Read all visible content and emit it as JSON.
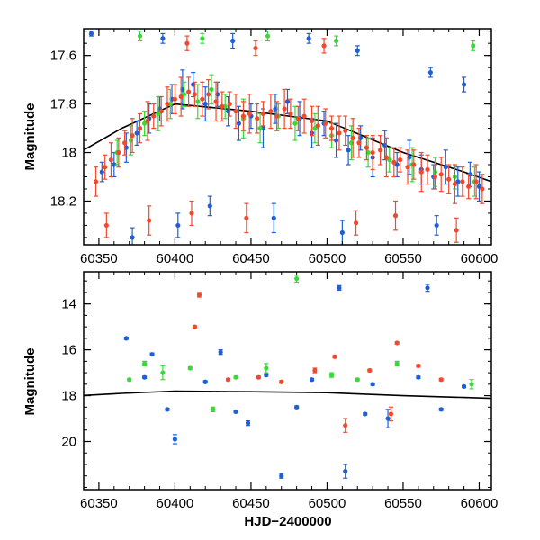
{
  "chart_data": [
    {
      "type": "scatter",
      "panel": "top",
      "title": "",
      "xlabel": "",
      "ylabel": "Magnitude",
      "xlim": [
        60340,
        60608
      ],
      "ylim": [
        18.38,
        17.49
      ],
      "y_inverted": true,
      "xticks": [
        60350,
        60400,
        60450,
        60500,
        60550,
        60600
      ],
      "yticks": [
        17.6,
        17.8,
        18.0,
        18.2
      ],
      "ytick_labels": [
        "17.6",
        "17.8",
        "18",
        "18.2"
      ],
      "grid": false,
      "trend_line": {
        "color": "#000000",
        "points": [
          [
            60340,
            17.99
          ],
          [
            60365,
            17.9
          ],
          [
            60400,
            17.8
          ],
          [
            60450,
            17.83
          ],
          [
            60500,
            17.87
          ],
          [
            60550,
            18.0
          ],
          [
            60590,
            18.08
          ],
          [
            60608,
            18.12
          ]
        ]
      },
      "series": [
        {
          "color": "#1f5fd6",
          "points": [
            [
              60352,
              18.08,
              0.04
            ],
            [
              60360,
              18.05,
              0.05
            ],
            [
              60368,
              17.98,
              0.06
            ],
            [
              60375,
              17.92,
              0.05
            ],
            [
              60383,
              17.86,
              0.06
            ],
            [
              60390,
              17.82,
              0.05
            ],
            [
              60398,
              17.78,
              0.06
            ],
            [
              60405,
              17.74,
              0.08
            ],
            [
              60412,
              17.72,
              0.05
            ],
            [
              60420,
              17.8,
              0.07
            ],
            [
              60428,
              17.76,
              0.05
            ],
            [
              60435,
              17.83,
              0.06
            ],
            [
              60442,
              17.88,
              0.07
            ],
            [
              60450,
              17.85,
              0.05
            ],
            [
              60458,
              17.9,
              0.08
            ],
            [
              60466,
              17.82,
              0.06
            ],
            [
              60474,
              17.79,
              0.05
            ],
            [
              60482,
              17.86,
              0.07
            ],
            [
              60490,
              17.92,
              0.06
            ],
            [
              60498,
              17.88,
              0.05
            ],
            [
              60506,
              17.95,
              0.07
            ],
            [
              60514,
              17.99,
              0.06
            ],
            [
              60522,
              17.94,
              0.05
            ],
            [
              60530,
              18.02,
              0.08
            ],
            [
              60538,
              17.97,
              0.06
            ],
            [
              60546,
              18.05,
              0.05
            ],
            [
              60554,
              18.02,
              0.07
            ],
            [
              60562,
              18.07,
              0.06
            ],
            [
              60570,
              18.1,
              0.05
            ],
            [
              60578,
              18.06,
              0.07
            ],
            [
              60586,
              18.12,
              0.06
            ],
            [
              60594,
              18.09,
              0.05
            ],
            [
              60600,
              18.14,
              0.06
            ],
            [
              60372,
              18.35,
              0.04
            ],
            [
              60402,
              18.3,
              0.05
            ],
            [
              60423,
              18.22,
              0.04
            ],
            [
              60465,
              18.27,
              0.06
            ],
            [
              60510,
              18.33,
              0.05
            ],
            [
              60572,
              18.3,
              0.04
            ],
            [
              60345,
              17.51,
              0.01
            ],
            [
              60392,
              17.53,
              0.02
            ],
            [
              60438,
              17.54,
              0.03
            ],
            [
              60488,
              17.53,
              0.02
            ],
            [
              60520,
              17.58,
              0.02
            ],
            [
              60568,
              17.67,
              0.02
            ],
            [
              60590,
              17.72,
              0.03
            ]
          ]
        },
        {
          "color": "#3ad93a",
          "points": [
            [
              60362,
              18.0,
              0.05
            ],
            [
              60371,
              17.95,
              0.06
            ],
            [
              60380,
              17.88,
              0.05
            ],
            [
              60389,
              17.84,
              0.07
            ],
            [
              60397,
              17.8,
              0.06
            ],
            [
              60406,
              17.76,
              0.05
            ],
            [
              60415,
              17.79,
              0.07
            ],
            [
              60424,
              17.74,
              0.06
            ],
            [
              60433,
              17.81,
              0.05
            ],
            [
              60445,
              17.86,
              0.08
            ],
            [
              60456,
              17.9,
              0.06
            ],
            [
              60468,
              17.85,
              0.05
            ],
            [
              60479,
              17.88,
              0.07
            ],
            [
              60492,
              17.9,
              0.06
            ],
            [
              60503,
              17.93,
              0.05
            ],
            [
              60516,
              17.96,
              0.07
            ],
            [
              60527,
              18.0,
              0.06
            ],
            [
              60541,
              18.03,
              0.05
            ],
            [
              60556,
              18.05,
              0.07
            ],
            [
              60571,
              18.08,
              0.06
            ],
            [
              60584,
              18.1,
              0.05
            ],
            [
              60597,
              18.12,
              0.06
            ],
            [
              60377,
              17.52,
              0.02
            ],
            [
              60418,
              17.53,
              0.02
            ],
            [
              60461,
              17.52,
              0.02
            ],
            [
              60506,
              17.54,
              0.02
            ],
            [
              60596,
              17.56,
              0.02
            ]
          ]
        },
        {
          "color": "#f04a2e",
          "points": [
            [
              60348,
              18.12,
              0.06
            ],
            [
              60354,
              18.06,
              0.05
            ],
            [
              60358,
              18.03,
              0.07
            ],
            [
              60363,
              18.0,
              0.06
            ],
            [
              60367,
              17.96,
              0.05
            ],
            [
              60372,
              17.93,
              0.07
            ],
            [
              60377,
              17.9,
              0.06
            ],
            [
              60382,
              17.87,
              0.08
            ],
            [
              60386,
              17.85,
              0.05
            ],
            [
              60391,
              17.83,
              0.06
            ],
            [
              60395,
              17.8,
              0.07
            ],
            [
              60400,
              17.78,
              0.06
            ],
            [
              60404,
              17.77,
              0.08
            ],
            [
              60409,
              17.75,
              0.06
            ],
            [
              60413,
              17.76,
              0.05
            ],
            [
              60418,
              17.78,
              0.07
            ],
            [
              60422,
              17.76,
              0.06
            ],
            [
              60427,
              17.79,
              0.08
            ],
            [
              60431,
              17.81,
              0.06
            ],
            [
              60436,
              17.8,
              0.05
            ],
            [
              60440,
              17.83,
              0.07
            ],
            [
              60445,
              17.85,
              0.06
            ],
            [
              60449,
              17.84,
              0.08
            ],
            [
              60454,
              17.86,
              0.06
            ],
            [
              60458,
              17.84,
              0.05
            ],
            [
              60463,
              17.83,
              0.07
            ],
            [
              60467,
              17.85,
              0.06
            ],
            [
              60472,
              17.82,
              0.08
            ],
            [
              60476,
              17.84,
              0.06
            ],
            [
              60481,
              17.86,
              0.05
            ],
            [
              60485,
              17.85,
              0.07
            ],
            [
              60490,
              17.87,
              0.06
            ],
            [
              60494,
              17.89,
              0.08
            ],
            [
              60499,
              17.88,
              0.06
            ],
            [
              60503,
              17.9,
              0.05
            ],
            [
              60508,
              17.92,
              0.07
            ],
            [
              60512,
              17.91,
              0.06
            ],
            [
              60517,
              17.94,
              0.08
            ],
            [
              60521,
              17.96,
              0.06
            ],
            [
              60526,
              17.98,
              0.05
            ],
            [
              60530,
              18.0,
              0.07
            ],
            [
              60535,
              17.99,
              0.06
            ],
            [
              60539,
              18.02,
              0.08
            ],
            [
              60544,
              18.04,
              0.06
            ],
            [
              60548,
              18.03,
              0.05
            ],
            [
              60553,
              18.06,
              0.07
            ],
            [
              60557,
              18.05,
              0.06
            ],
            [
              60562,
              18.08,
              0.08
            ],
            [
              60566,
              18.07,
              0.06
            ],
            [
              60571,
              18.1,
              0.05
            ],
            [
              60575,
              18.09,
              0.07
            ],
            [
              60580,
              18.11,
              0.06
            ],
            [
              60584,
              18.13,
              0.08
            ],
            [
              60589,
              18.12,
              0.06
            ],
            [
              60593,
              18.14,
              0.05
            ],
            [
              60598,
              18.12,
              0.07
            ],
            [
              60602,
              18.15,
              0.06
            ],
            [
              60355,
              18.3,
              0.05
            ],
            [
              60383,
              18.28,
              0.06
            ],
            [
              60411,
              18.25,
              0.05
            ],
            [
              60447,
              18.27,
              0.06
            ],
            [
              60519,
              18.29,
              0.05
            ],
            [
              60545,
              18.26,
              0.06
            ],
            [
              60585,
              18.32,
              0.05
            ],
            [
              60408,
              17.55,
              0.03
            ],
            [
              60453,
              17.57,
              0.03
            ],
            [
              60498,
              17.56,
              0.03
            ]
          ]
        }
      ]
    },
    {
      "type": "scatter",
      "panel": "bottom",
      "title": "",
      "xlabel": "HJD−2400000",
      "ylabel": "Magnitude",
      "xlim": [
        60340,
        60608
      ],
      "ylim": [
        22.1,
        12.6
      ],
      "y_inverted": true,
      "xticks": [
        60350,
        60400,
        60450,
        60500,
        60550,
        60600
      ],
      "yticks": [
        14,
        16,
        18,
        20
      ],
      "ytick_labels": [
        "14",
        "16",
        "18",
        "20"
      ],
      "grid": false,
      "trend_line": {
        "color": "#000000",
        "points": [
          [
            60340,
            17.99
          ],
          [
            60365,
            17.9
          ],
          [
            60400,
            17.8
          ],
          [
            60450,
            17.83
          ],
          [
            60500,
            17.87
          ],
          [
            60550,
            18.0
          ],
          [
            60590,
            18.08
          ],
          [
            60608,
            18.12
          ]
        ]
      },
      "series": [
        {
          "color": "#1f5fd6",
          "points": [
            [
              60368,
              15.5,
              0.05
            ],
            [
              60385,
              16.2,
              0.06
            ],
            [
              60400,
              19.9,
              0.2
            ],
            [
              60430,
              16.1,
              0.1
            ],
            [
              60448,
              19.2,
              0.1
            ],
            [
              60470,
              21.5,
              0.1
            ],
            [
              60508,
              13.3,
              0.1
            ],
            [
              60512,
              21.3,
              0.3
            ],
            [
              60540,
              19.0,
              0.4
            ],
            [
              60566,
              13.3,
              0.15
            ],
            [
              60380,
              17.2,
              0.05
            ],
            [
              60420,
              17.4,
              0.05
            ],
            [
              60460,
              17.1,
              0.05
            ],
            [
              60490,
              17.3,
              0.05
            ],
            [
              60530,
              17.5,
              0.05
            ],
            [
              60560,
              17.2,
              0.05
            ],
            [
              60590,
              17.6,
              0.05
            ],
            [
              60395,
              18.6,
              0.05
            ],
            [
              60440,
              18.7,
              0.05
            ],
            [
              60480,
              18.5,
              0.05
            ],
            [
              60525,
              18.8,
              0.05
            ],
            [
              60575,
              18.6,
              0.05
            ]
          ]
        },
        {
          "color": "#3ad93a",
          "points": [
            [
              60380,
              16.6,
              0.1
            ],
            [
              60392,
              17.0,
              0.3
            ],
            [
              60425,
              18.6,
              0.1
            ],
            [
              60460,
              16.8,
              0.2
            ],
            [
              60480,
              12.9,
              0.15
            ],
            [
              60503,
              17.1,
              0.1
            ],
            [
              60546,
              16.6,
              0.1
            ],
            [
              60595,
              17.5,
              0.2
            ],
            [
              60410,
              16.8,
              0.05
            ],
            [
              60370,
              17.3,
              0.05
            ],
            [
              60440,
              17.2,
              0.05
            ],
            [
              60520,
              17.3,
              0.05
            ]
          ]
        },
        {
          "color": "#f04a2e",
          "points": [
            [
              60413,
              15.0,
              0.05
            ],
            [
              60416,
              13.6,
              0.1
            ],
            [
              60455,
              17.2,
              0.05
            ],
            [
              60492,
              16.9,
              0.1
            ],
            [
              60505,
              16.3,
              0.05
            ],
            [
              60512,
              19.3,
              0.3
            ],
            [
              60528,
              16.9,
              0.05
            ],
            [
              60542,
              18.8,
              0.3
            ],
            [
              60546,
              15.7,
              0.05
            ],
            [
              60560,
              16.7,
              0.05
            ],
            [
              60435,
              17.3,
              0.05
            ],
            [
              60470,
              17.4,
              0.05
            ],
            [
              60575,
              17.3,
              0.05
            ]
          ]
        }
      ]
    }
  ]
}
